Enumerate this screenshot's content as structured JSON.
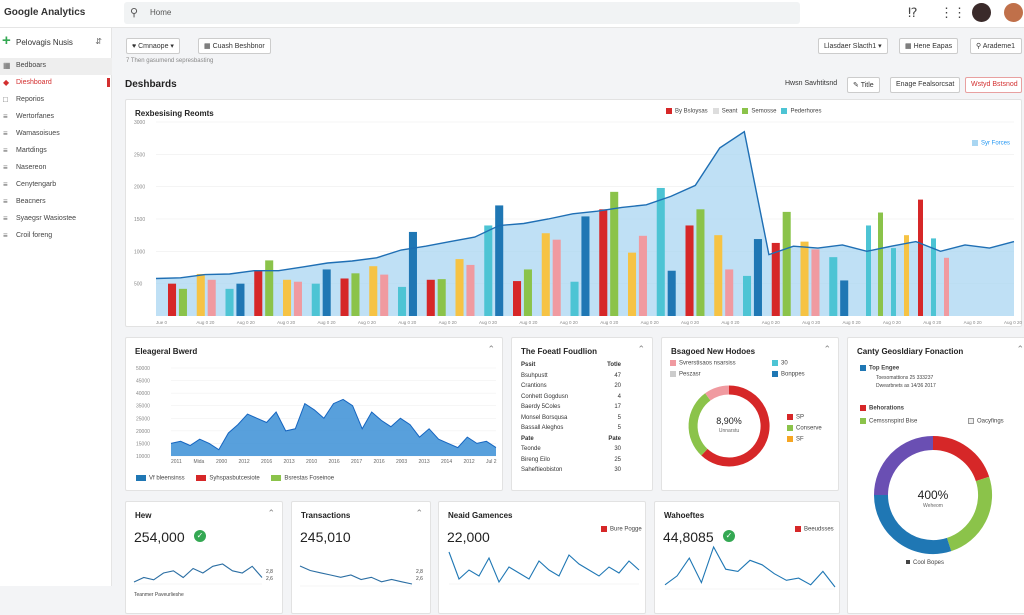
{
  "app": {
    "title": "Google Analytics",
    "search_placeholder": "Home"
  },
  "top_icons": [
    "help-icon",
    "apps-icon"
  ],
  "property": {
    "label": "Pelovagis Nusis"
  },
  "sidebar": {
    "items": [
      {
        "label": "Bedboars",
        "icon": "grid-icon"
      },
      {
        "label": "Dieshboard",
        "icon": "dashboard-icon"
      },
      {
        "label": "Reporios",
        "icon": "report-icon"
      },
      {
        "label": "Wertorfanes",
        "icon": "list-icon"
      },
      {
        "label": "Wamasoisues",
        "icon": "list-icon"
      },
      {
        "label": "Martdings",
        "icon": "list-icon"
      },
      {
        "label": "Nasereon",
        "icon": "list-icon"
      },
      {
        "label": "Cenytengarb",
        "icon": "list-icon"
      },
      {
        "label": "Beacners",
        "icon": "list-icon"
      },
      {
        "label": "Syaegsr Wasiostee",
        "icon": "list-icon"
      },
      {
        "label": "Croil foreng",
        "icon": "list-icon"
      }
    ]
  },
  "toolbar": {
    "twitter": "Cmnaope",
    "compare": "Cuash Beshbnor",
    "sub": "7 Then gasumend sepresbasting",
    "right1": "Llasdaer Slacth1",
    "right2": "Hene Eapas",
    "right3": "Arademe1"
  },
  "page": {
    "title": "Deshbards",
    "btn1": "Hwsn Savhtitsnd",
    "btn2": "Title",
    "btn3": "Enage Fealsorcsat",
    "btn4": "Wstyd Bstsnod"
  },
  "main_chart": {
    "title": "Rexbesising Reomts",
    "legend": [
      "By Bsloysas",
      "Seant",
      "Semosse",
      "Pederhores"
    ],
    "note": "Syr Forces",
    "yticks": [
      "3000",
      "2500",
      "2000",
      "1500",
      "1000",
      "500"
    ],
    "xticks": [
      "Jue 0",
      "Aug 0 20",
      "Aug 0 20",
      "Aug 0 20",
      "Aug 0 20",
      "Aug 0 20",
      "Aug 0 20",
      "Aug 0 20",
      "Aug 0 20",
      "Aug 0 20",
      "Aug 0 20",
      "Aug 0 20",
      "Aug 0 20",
      "Aug 0 20",
      "Aug 0 20",
      "Aug 0 20",
      "Aug 0 20",
      "Aug 0 20",
      "Aug 0 20",
      "Aug 0 20",
      "Aug 0 20",
      "Aug 0 20"
    ]
  },
  "colors": {
    "blue": "#1f77b4",
    "red": "#d62728",
    "green": "#8bc34a",
    "yellow": "#f6c344",
    "cyan": "#4dc4d4",
    "lightblue": "#a9d6f2",
    "lightred": "#f09aa0"
  },
  "chart_data": [
    {
      "type": "bar",
      "title": "Rexbesising Reomts",
      "series": [
        {
          "name": "By Bsloysas",
          "values": [
            500,
            650,
            420,
            700,
            560,
            500,
            580,
            770,
            450,
            560,
            880,
            1400,
            540,
            1280,
            530,
            1650,
            980,
            1980,
            1400,
            1250,
            620,
            1130,
            1150,
            910
          ]
        },
        {
          "name": "Semosse",
          "values": [
            420,
            560,
            500,
            860,
            530,
            720,
            660,
            640,
            1300,
            570,
            790,
            1710,
            720,
            1180,
            1540,
            1920,
            1240,
            700,
            1650,
            720,
            1190,
            1610,
            1030,
            550
          ]
        }
      ],
      "line": {
        "name": "Pederhores",
        "values": [
          580,
          590,
          640,
          650,
          700,
          700,
          760,
          820,
          850,
          900,
          1020,
          1080,
          1150,
          1220,
          1400,
          1430,
          1500,
          1580,
          1620,
          1680,
          1720,
          1850,
          2020,
          2600,
          2850,
          950,
          1080,
          1050,
          1100,
          1000,
          1080,
          1150,
          1000,
          1100,
          1050,
          1150
        ]
      }
    },
    {
      "type": "area",
      "title": "Eleageral Bwerd",
      "yticks": [
        "50000",
        "45000",
        "40000",
        "35000",
        "25000",
        "20000",
        "15000",
        "10000"
      ],
      "xticks": [
        "2011",
        "Mida",
        "2000",
        "2012",
        "2016",
        "2013",
        "2010",
        "2016",
        "2017",
        "2016",
        "2003",
        "2013",
        "2014",
        "2012",
        "Jul 2"
      ],
      "values": [
        14000,
        15000,
        13000,
        16000,
        14000,
        11000,
        19000,
        23000,
        28000,
        26000,
        24000,
        29000,
        20000,
        21000,
        33000,
        30000,
        26000,
        33000,
        35000,
        32000,
        21000,
        29000,
        25000,
        22000,
        26000,
        23000,
        17000,
        21000,
        16000,
        14000,
        12000,
        17000,
        14000,
        15000,
        12000
      ]
    },
    {
      "type": "table",
      "title": "The Foeatl Foudlion",
      "columns": [
        "Pssit",
        "Totle"
      ],
      "rows": [
        [
          "Bsuhpustt",
          "47"
        ],
        [
          "Crantions",
          "20"
        ],
        [
          "Conhett Gogdusn",
          "4"
        ],
        [
          "Baerdy 5Coles",
          "17"
        ],
        [
          "Monsel Borsqusa",
          "5"
        ],
        [
          "Bassall Aleghos",
          "5"
        ]
      ],
      "columns2": [
        "Pate",
        "Pate"
      ],
      "rows2": [
        [
          "Teonde",
          "30"
        ],
        [
          "Bireng Eilo",
          "25"
        ],
        [
          "Saheftieobiston",
          "30"
        ]
      ]
    },
    {
      "type": "pie",
      "title": "Bsagoed New Hodoes",
      "center": "8,90%",
      "center_sub": "Unnarstu",
      "values": [
        62,
        28,
        10
      ],
      "legend": [
        "Svrerstisaos nsarsiss",
        "Peszasr",
        "30",
        "Bonppes",
        "SP",
        "Conserve",
        "SF"
      ]
    },
    {
      "type": "pie",
      "title": "Canty Geosldiary Fonaction",
      "center": "400%",
      "center_sub": "Weheom",
      "values": [
        20,
        25,
        30,
        25
      ],
      "legend": [
        "Top Engee",
        "Toesomattions 25 333237",
        "Dwearbnets as 14/36 2017",
        "Behorations",
        "Cemssnspird Bise",
        "Oacyfings",
        "Cool Bopes"
      ]
    },
    {
      "type": "line",
      "title": "Hew",
      "values": [
        10,
        14,
        12,
        18,
        20,
        14,
        22,
        18,
        24,
        26,
        20,
        18,
        24,
        14
      ]
    },
    {
      "type": "line",
      "title": "Transactions",
      "values": [
        26,
        22,
        20,
        18,
        16,
        18,
        14,
        16,
        12,
        14,
        12,
        10
      ]
    },
    {
      "type": "line",
      "title": "Neaid Gamences",
      "values": [
        30,
        12,
        18,
        14,
        26,
        10,
        20,
        16,
        12,
        24,
        18,
        14,
        28,
        22,
        18,
        14,
        20,
        16,
        24,
        18
      ]
    },
    {
      "type": "line",
      "title": "Wahoeftes",
      "values": [
        6,
        14,
        30,
        8,
        40,
        20,
        18,
        28,
        24,
        16,
        10,
        12,
        6,
        18,
        4
      ]
    }
  ],
  "cards": {
    "kpi1": {
      "title": "Hew",
      "value": "254,000",
      "sub": "Teanmer Paveurlieshe",
      "axis": [
        "2,8",
        "2,6"
      ]
    },
    "kpi2": {
      "title": "Transactions",
      "value": "245,010",
      "axis": [
        "2,8",
        "2,6"
      ]
    },
    "kpi3": {
      "title": "Neaid Gamences",
      "value": "22,000",
      "legend": "Bure Pogge"
    },
    "kpi4": {
      "title": "Wahoeftes",
      "value": "44,8085",
      "legend": "Beeudsses"
    }
  },
  "area_legend": [
    "Vf bleensinss",
    "Syhspasbutcesiote",
    "Bsrestas Foseinoe"
  ]
}
